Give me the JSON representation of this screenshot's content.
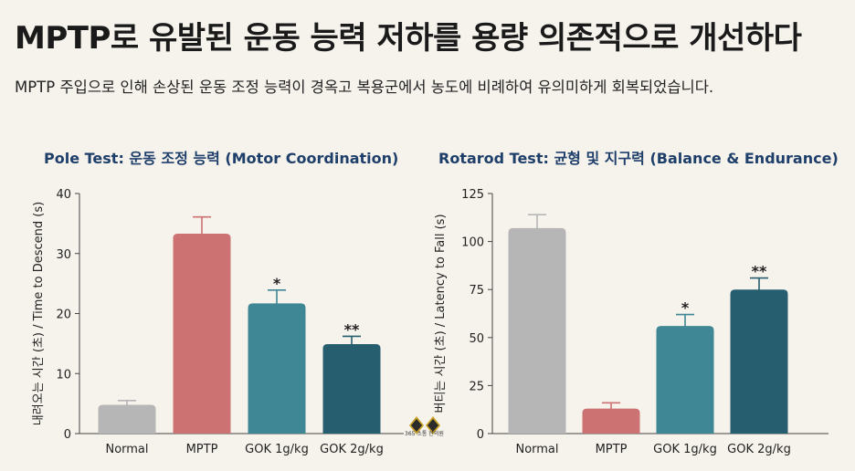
{
  "header": {
    "title": "MPTP로 유발된 운동 능력 저하를 용량 의존적으로 개선하다",
    "subtitle": "MPTP 주입으로 인해 손상된 운동 조정 능력이 경옥고 복용군에서 농도에 비례하여 유의미하게 회복되었습니다."
  },
  "logo": {
    "text": "365 소통 한의원"
  },
  "colors": {
    "normal": "#b6b6b6",
    "mptp": "#cd7272",
    "gok1": "#3f8795",
    "gok2": "#265e6f",
    "title_blue": "#1f3f6b"
  },
  "chart_data": [
    {
      "type": "bar",
      "title": "Pole Test: 운동 조정 능력 (Motor Coordination)",
      "xlabel": "",
      "ylabel": "내려오는 시간 (초) / Time to Descend (s)",
      "categories": [
        "Normal",
        "MPTP",
        "GOK 1g/kg",
        "GOK 2g/kg"
      ],
      "values": [
        4.8,
        33.3,
        21.7,
        14.9
      ],
      "errors": [
        0.7,
        2.8,
        2.2,
        1.3
      ],
      "significance": [
        "",
        "",
        "*",
        "**"
      ],
      "ylim": [
        0,
        40
      ],
      "yticks": [
        0,
        10,
        20,
        30,
        40
      ],
      "grid": false
    },
    {
      "type": "bar",
      "title": "Rotarod Test: 균형 및 지구력 (Balance & Endurance)",
      "xlabel": "",
      "ylabel": "버티는 시간 (초) / Latency to Fall (s)",
      "categories": [
        "Normal",
        "MPTP",
        "GOK 1g/kg",
        "GOK 2g/kg"
      ],
      "values": [
        107,
        13,
        56,
        75
      ],
      "errors": [
        7,
        3,
        6,
        6
      ],
      "significance": [
        "",
        "",
        "*",
        "**"
      ],
      "ylim": [
        0,
        125
      ],
      "yticks": [
        0,
        25,
        50,
        75,
        100,
        125
      ],
      "grid": false
    }
  ]
}
